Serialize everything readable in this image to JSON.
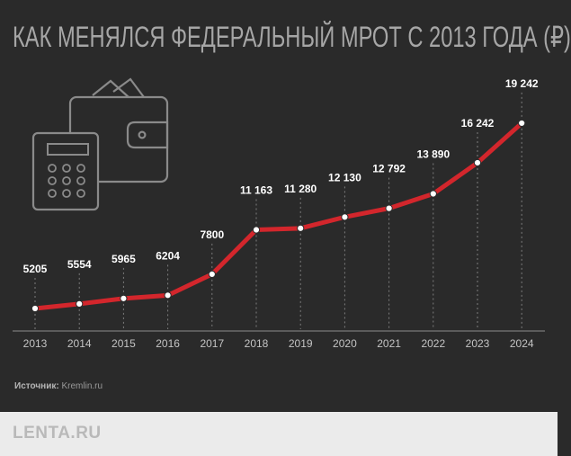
{
  "title": "КАК МЕНЯЛСЯ ФЕДЕРАЛЬНЫЙ МРОТ С 2013 ГОДА (₽)",
  "source_label": "Источник:",
  "source_value": "Kremlin.ru",
  "logo": "LENTA.RU",
  "icons": [
    "wallet-icon",
    "calculator-icon"
  ],
  "colors": {
    "background": "#2a2a2a",
    "line": "#d3262c",
    "text": "#ffffff",
    "axis": "#8c8c8c",
    "footer": "#ebebeb"
  },
  "chart_data": {
    "type": "line",
    "title": "КАК МЕНЯЛСЯ ФЕДЕРАЛЬНЫЙ МРОТ С 2013 ГОДА (₽)",
    "x": [
      "2013",
      "2014",
      "2015",
      "2016",
      "2017",
      "2018",
      "2019",
      "2020",
      "2021",
      "2022",
      "2023",
      "2024"
    ],
    "values": [
      5205,
      5554,
      5965,
      6204,
      7800,
      11163,
      11280,
      12130,
      12792,
      13890,
      16242,
      19242
    ],
    "labels": [
      "5205",
      "5554",
      "5965",
      "6204",
      "7800",
      "11 163",
      "11 280",
      "12 130",
      "12 792",
      "13 890",
      "16 242",
      "19 242"
    ],
    "xlabel": "",
    "ylabel": "",
    "grid": false,
    "legend": "none"
  }
}
